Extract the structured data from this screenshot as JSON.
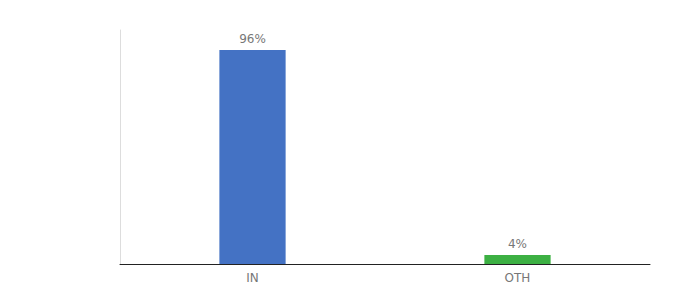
{
  "chart_data": {
    "type": "bar",
    "categories": [
      "IN",
      "OTH"
    ],
    "values": [
      96,
      4
    ],
    "value_labels": [
      "96%",
      "4%"
    ],
    "colors": [
      "#4472c4",
      "#3cb043"
    ],
    "ylim": [
      0,
      105
    ],
    "data_labels": true,
    "tick_labels": "x",
    "grid": false
  }
}
